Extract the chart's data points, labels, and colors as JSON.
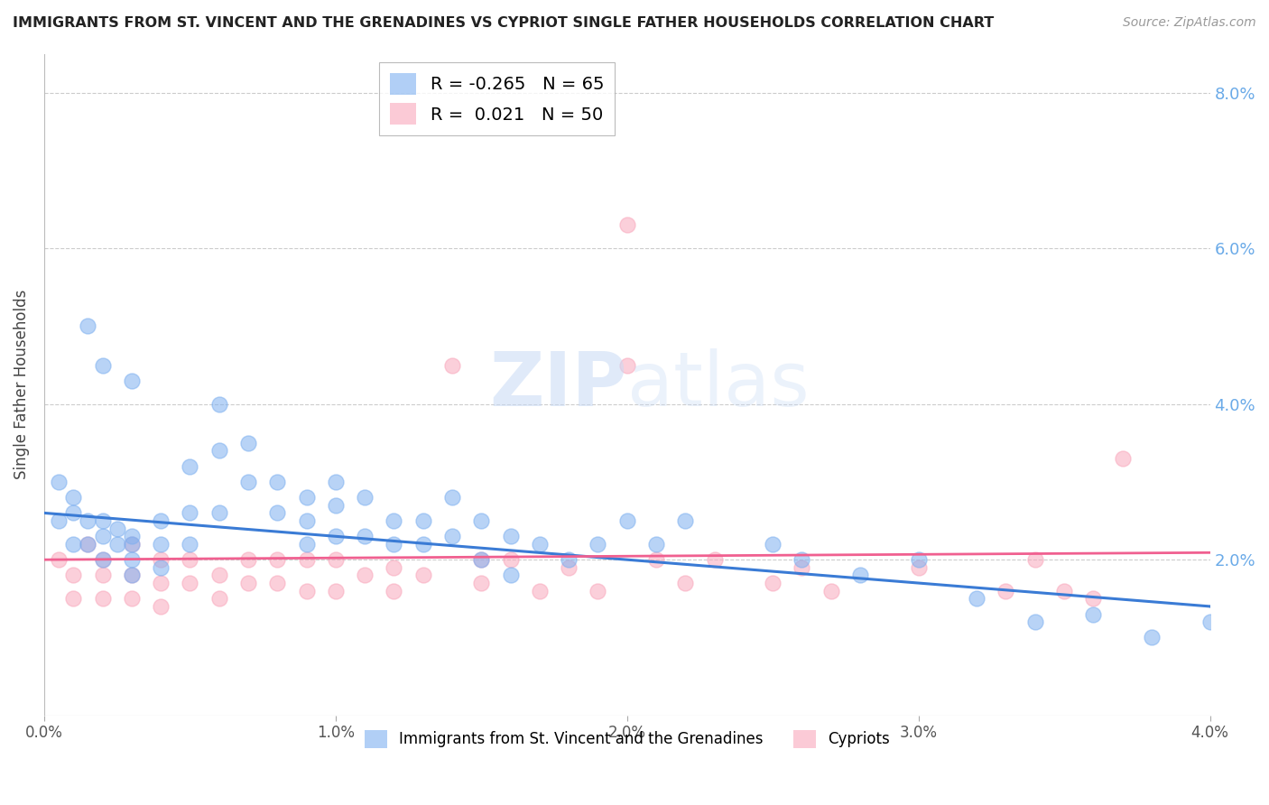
{
  "title": "IMMIGRANTS FROM ST. VINCENT AND THE GRENADINES VS CYPRIOT SINGLE FATHER HOUSEHOLDS CORRELATION CHART",
  "source": "Source: ZipAtlas.com",
  "ylabel": "Single Father Households",
  "legend1_label": "Immigrants from St. Vincent and the Grenadines",
  "legend2_label": "Cypriots",
  "R1": -0.265,
  "N1": 65,
  "R2": 0.021,
  "N2": 50,
  "color_blue": "#7EB0F0",
  "color_pink": "#F9A8BC",
  "color_blue_line": "#3A7BD5",
  "color_pink_line": "#F06090",
  "blue_scatter_x": [
    0.0005,
    0.0005,
    0.001,
    0.001,
    0.001,
    0.0015,
    0.0015,
    0.002,
    0.002,
    0.002,
    0.0025,
    0.0025,
    0.003,
    0.003,
    0.003,
    0.003,
    0.004,
    0.004,
    0.004,
    0.005,
    0.005,
    0.005,
    0.006,
    0.006,
    0.006,
    0.007,
    0.007,
    0.008,
    0.008,
    0.009,
    0.009,
    0.009,
    0.01,
    0.01,
    0.01,
    0.011,
    0.011,
    0.012,
    0.012,
    0.013,
    0.013,
    0.014,
    0.014,
    0.015,
    0.015,
    0.016,
    0.016,
    0.017,
    0.018,
    0.019,
    0.02,
    0.021,
    0.022,
    0.0015,
    0.002,
    0.003,
    0.025,
    0.026,
    0.028,
    0.03,
    0.032,
    0.034,
    0.036,
    0.038,
    0.04
  ],
  "blue_scatter_y": [
    0.025,
    0.03,
    0.026,
    0.028,
    0.022,
    0.025,
    0.022,
    0.025,
    0.023,
    0.02,
    0.024,
    0.022,
    0.023,
    0.022,
    0.02,
    0.018,
    0.025,
    0.022,
    0.019,
    0.032,
    0.026,
    0.022,
    0.04,
    0.034,
    0.026,
    0.035,
    0.03,
    0.03,
    0.026,
    0.028,
    0.025,
    0.022,
    0.03,
    0.027,
    0.023,
    0.028,
    0.023,
    0.025,
    0.022,
    0.025,
    0.022,
    0.028,
    0.023,
    0.025,
    0.02,
    0.023,
    0.018,
    0.022,
    0.02,
    0.022,
    0.025,
    0.022,
    0.025,
    0.05,
    0.045,
    0.043,
    0.022,
    0.02,
    0.018,
    0.02,
    0.015,
    0.012,
    0.013,
    0.01,
    0.012
  ],
  "pink_scatter_x": [
    0.0005,
    0.001,
    0.001,
    0.0015,
    0.002,
    0.002,
    0.002,
    0.003,
    0.003,
    0.003,
    0.004,
    0.004,
    0.004,
    0.005,
    0.005,
    0.006,
    0.006,
    0.007,
    0.007,
    0.008,
    0.008,
    0.009,
    0.009,
    0.01,
    0.01,
    0.011,
    0.012,
    0.012,
    0.013,
    0.014,
    0.015,
    0.015,
    0.016,
    0.017,
    0.018,
    0.019,
    0.02,
    0.02,
    0.021,
    0.022,
    0.023,
    0.025,
    0.026,
    0.027,
    0.03,
    0.033,
    0.034,
    0.035,
    0.036,
    0.037
  ],
  "pink_scatter_y": [
    0.02,
    0.018,
    0.015,
    0.022,
    0.02,
    0.018,
    0.015,
    0.022,
    0.018,
    0.015,
    0.02,
    0.017,
    0.014,
    0.02,
    0.017,
    0.018,
    0.015,
    0.02,
    0.017,
    0.02,
    0.017,
    0.02,
    0.016,
    0.02,
    0.016,
    0.018,
    0.019,
    0.016,
    0.018,
    0.045,
    0.02,
    0.017,
    0.02,
    0.016,
    0.019,
    0.016,
    0.063,
    0.045,
    0.02,
    0.017,
    0.02,
    0.017,
    0.019,
    0.016,
    0.019,
    0.016,
    0.02,
    0.016,
    0.015,
    0.033
  ],
  "xlim": [
    0.0,
    0.04
  ],
  "ylim": [
    0.0,
    0.085
  ],
  "xticks": [
    0.0,
    0.01,
    0.02,
    0.03,
    0.04
  ],
  "xticklabels": [
    "0.0%",
    "1.0%",
    "2.0%",
    "3.0%",
    "4.0%"
  ],
  "yticks": [
    0.0,
    0.02,
    0.04,
    0.06,
    0.08
  ],
  "yticklabels_right": [
    "",
    "2.0%",
    "4.0%",
    "6.0%",
    "8.0%"
  ]
}
